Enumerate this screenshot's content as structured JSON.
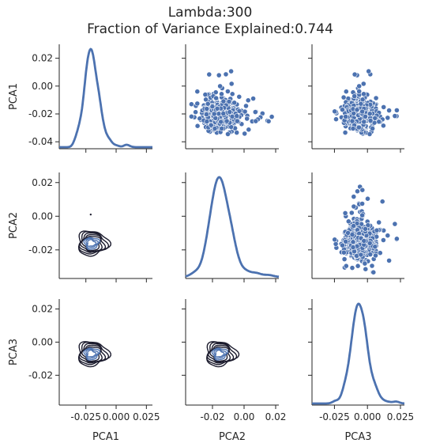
{
  "chart_data": {
    "type": "scatter",
    "title": "Lambda:300",
    "subtitle": "Fraction of Variance Explained:0.744",
    "variables": [
      "PCA1",
      "PCA2",
      "PCA3"
    ],
    "diagonal": "kde",
    "lower": "kde-contour",
    "upper": "scatter",
    "colors": {
      "series": "#4c72b0",
      "contour": "#1c1c2e",
      "marker_edge": "#ffffff"
    },
    "x_ticks": [
      [
        "-0.025",
        "0.000",
        "0.025"
      ],
      [
        "-0.02",
        "0.00",
        "0.02"
      ],
      [
        "-0.025",
        "0.000",
        "0.025"
      ]
    ],
    "y_ticks": [
      [
        "0.02",
        "0.00",
        "-0.02",
        "-0.04"
      ],
      [
        "0.02",
        "0.00",
        "-0.02"
      ],
      [
        "0.02",
        "0.00",
        "-0.02"
      ]
    ],
    "ranges": {
      "PCA1": [
        -0.047,
        0.03
      ],
      "PCA2": [
        -0.037,
        0.022
      ],
      "PCA3": [
        -0.042,
        0.028
      ]
    },
    "ylim_rows": {
      "PCA1": [
        -0.045,
        0.03
      ],
      "PCA2": [
        -0.037,
        0.026
      ],
      "PCA3": [
        -0.038,
        0.026
      ]
    },
    "distribution": {
      "PCA1": {
        "center": -0.021,
        "spread": 0.0038,
        "skew_tail": 0.012
      },
      "PCA2": {
        "center": -0.016,
        "spread": 0.0045,
        "skew_tail": 0.015
      },
      "PCA3": {
        "center": -0.007,
        "spread": 0.0042,
        "skew_tail": 0.01
      }
    },
    "points_per_scatter": 420
  }
}
